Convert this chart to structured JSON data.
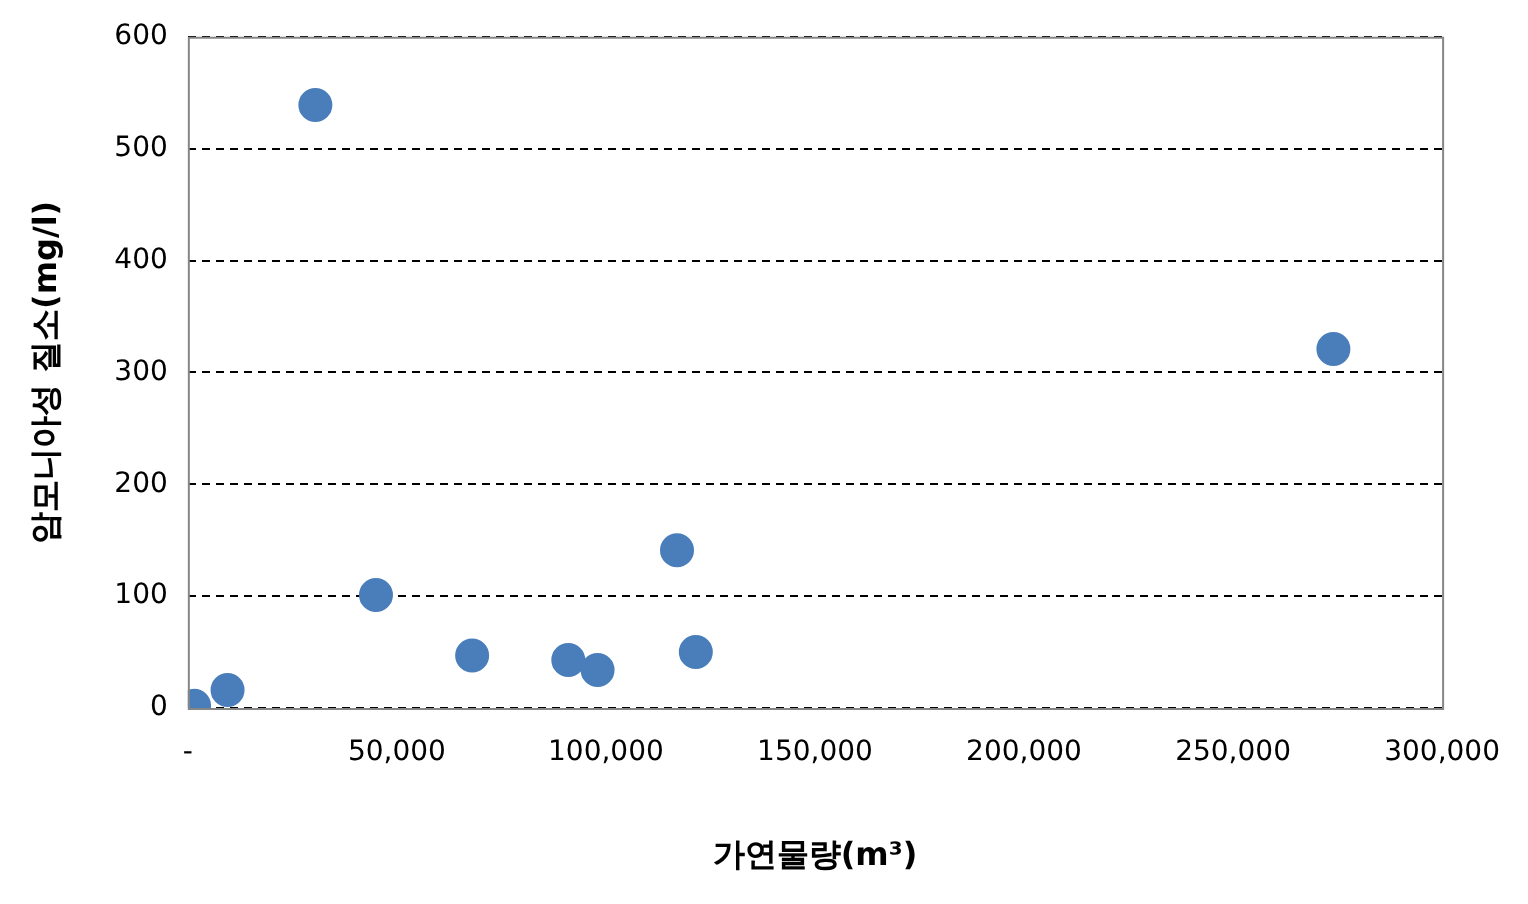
{
  "chart_data": {
    "type": "scatter",
    "xlabel": "가연물량(m³)",
    "ylabel": "암모니아성 질소(mg/l)",
    "x": [
      1500,
      9500,
      30500,
      45000,
      68000,
      91000,
      98000,
      117000,
      121500,
      274000
    ],
    "values": [
      2,
      16,
      539,
      101,
      47,
      43,
      34,
      141,
      50,
      321
    ],
    "color": "#4a7ebb",
    "marker": "circle",
    "xlim": [
      0,
      300000
    ],
    "xticks": [
      {
        "value": 0,
        "label": "-"
      },
      {
        "value": 50000,
        "label": "50,000"
      },
      {
        "value": 100000,
        "label": "100,000"
      },
      {
        "value": 150000,
        "label": "150,000"
      },
      {
        "value": 200000,
        "label": "200,000"
      },
      {
        "value": 250000,
        "label": "250,000"
      },
      {
        "value": 300000,
        "label": "300,000"
      }
    ],
    "ylim": [
      0,
      600
    ],
    "yticks": [
      0,
      100,
      200,
      300,
      400,
      500,
      600
    ],
    "grid": "y",
    "legend": false
  }
}
